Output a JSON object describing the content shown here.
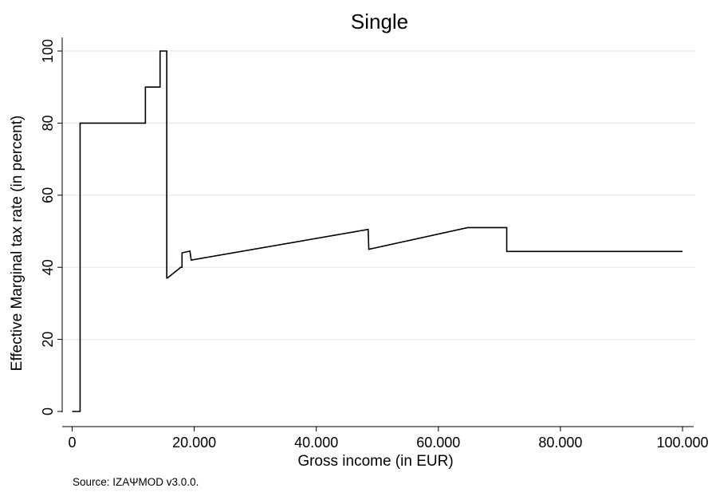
{
  "chart_data": {
    "type": "line",
    "title": "Single",
    "xlabel": "Gross income (in EUR)",
    "ylabel": "Effective Marginal tax rate (in percent)",
    "xlim": [
      0,
      100000
    ],
    "ylim": [
      0,
      100
    ],
    "xticks": [
      {
        "value": 0,
        "label": "0"
      },
      {
        "value": 20000,
        "label": "20.000"
      },
      {
        "value": 40000,
        "label": "40.000"
      },
      {
        "value": 60000,
        "label": "60.000"
      },
      {
        "value": 80000,
        "label": "80.000"
      },
      {
        "value": 100000,
        "label": "100.000"
      }
    ],
    "yticks": [
      {
        "value": 0,
        "label": "0"
      },
      {
        "value": 20,
        "label": "20"
      },
      {
        "value": 40,
        "label": "40"
      },
      {
        "value": 60,
        "label": "60"
      },
      {
        "value": 80,
        "label": "80"
      },
      {
        "value": 100,
        "label": "100"
      }
    ],
    "grid": true,
    "series": [
      {
        "color": "#000000",
        "x": [
          0,
          1100,
          1100,
          1300,
          1300,
          12000,
          12000,
          14400,
          14400,
          15100,
          15100,
          15500,
          15500,
          15600,
          17800,
          18000,
          18000,
          19300,
          19300,
          19500,
          19500,
          48500,
          48500,
          48600,
          64800,
          71200,
          71200,
          100000
        ],
        "y": [
          0,
          0,
          0,
          0,
          80,
          80,
          90,
          90,
          100,
          100,
          100,
          100,
          37,
          37,
          40,
          40,
          44,
          44.5,
          44.5,
          42,
          42,
          50.5,
          50.5,
          45,
          51,
          51,
          44.4,
          44.4
        ]
      }
    ]
  },
  "source_note": "Source: IZAΨMOD v3.0.0."
}
